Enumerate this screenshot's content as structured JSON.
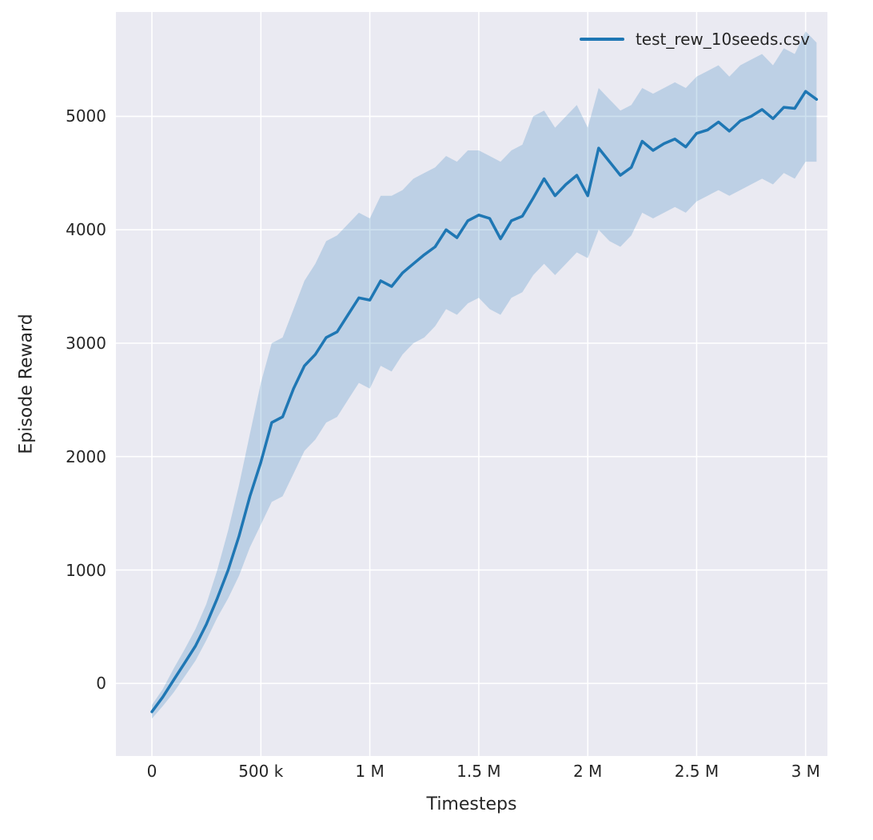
{
  "figure": {
    "background": "#ffffff",
    "plot_background": "#eaeaf2",
    "grid_color": "#ffffff",
    "text_color": "#262626"
  },
  "chart_data": {
    "type": "line",
    "title": "",
    "xlabel": "Timesteps",
    "ylabel": "Episode Reward",
    "grid": true,
    "legend": {
      "position": "upper right",
      "entries": [
        {
          "label": "test_rew_10seeds.csv",
          "color": "#1f77b4"
        }
      ]
    },
    "line_color": "#1f77b4",
    "line_width": 3.5,
    "band_color": "#1f77b4",
    "band_opacity": 0.22,
    "xlim": [
      -165000,
      3100000
    ],
    "ylim": [
      -640,
      5920
    ],
    "xticks": [
      0,
      500000,
      1000000,
      1500000,
      2000000,
      2500000,
      3000000
    ],
    "xtick_labels": [
      "0",
      "500 k",
      "1 M",
      "1.5 M",
      "2 M",
      "2.5 M",
      "3 M"
    ],
    "yticks": [
      0,
      1000,
      2000,
      3000,
      4000,
      5000
    ],
    "ytick_labels": [
      "0",
      "1000",
      "2000",
      "3000",
      "4000",
      "5000"
    ],
    "series": [
      {
        "name": "test_rew_10seeds.csv",
        "x": [
          0,
          50000,
          100000,
          150000,
          200000,
          250000,
          300000,
          350000,
          400000,
          450000,
          500000,
          550000,
          600000,
          650000,
          700000,
          750000,
          800000,
          850000,
          900000,
          950000,
          1000000,
          1050000,
          1100000,
          1150000,
          1200000,
          1250000,
          1300000,
          1350000,
          1400000,
          1450000,
          1500000,
          1550000,
          1600000,
          1650000,
          1700000,
          1750000,
          1800000,
          1850000,
          1900000,
          1950000,
          2000000,
          2050000,
          2100000,
          2150000,
          2200000,
          2250000,
          2300000,
          2350000,
          2400000,
          2450000,
          2500000,
          2550000,
          2600000,
          2650000,
          2700000,
          2750000,
          2800000,
          2850000,
          2900000,
          2950000,
          3000000,
          3050000
        ],
        "mean": [
          -250,
          -120,
          30,
          180,
          330,
          520,
          750,
          1000,
          1300,
          1650,
          1950,
          2300,
          2350,
          2600,
          2800,
          2900,
          3050,
          3100,
          3250,
          3400,
          3380,
          3550,
          3500,
          3620,
          3700,
          3780,
          3850,
          4000,
          3930,
          4080,
          4130,
          4100,
          3920,
          4080,
          4120,
          4280,
          4450,
          4300,
          4400,
          4480,
          4300,
          4720,
          4600,
          4480,
          4550,
          4780,
          4700,
          4760,
          4800,
          4730,
          4850,
          4880,
          4950,
          4870,
          4960,
          5000,
          5060,
          4980,
          5080,
          5070,
          5220,
          5150
        ],
        "lower": [
          -310,
          -200,
          -80,
          60,
          200,
          380,
          580,
          750,
          950,
          1200,
          1400,
          1600,
          1650,
          1850,
          2050,
          2150,
          2300,
          2350,
          2500,
          2650,
          2600,
          2800,
          2750,
          2900,
          3000,
          3050,
          3150,
          3300,
          3250,
          3350,
          3400,
          3300,
          3250,
          3400,
          3450,
          3600,
          3700,
          3600,
          3700,
          3800,
          3750,
          4000,
          3900,
          3850,
          3950,
          4150,
          4100,
          4150,
          4200,
          4150,
          4250,
          4300,
          4350,
          4300,
          4350,
          4400,
          4450,
          4400,
          4500,
          4450,
          4600,
          4600
        ],
        "upper": [
          -190,
          -50,
          130,
          300,
          480,
          700,
          1000,
          1350,
          1750,
          2200,
          2650,
          3000,
          3050,
          3300,
          3550,
          3700,
          3900,
          3950,
          4050,
          4150,
          4100,
          4300,
          4300,
          4350,
          4450,
          4500,
          4550,
          4650,
          4600,
          4700,
          4700,
          4650,
          4600,
          4700,
          4750,
          5000,
          5050,
          4900,
          5000,
          5100,
          4900,
          5250,
          5150,
          5050,
          5100,
          5250,
          5200,
          5250,
          5300,
          5250,
          5350,
          5400,
          5450,
          5350,
          5450,
          5500,
          5550,
          5450,
          5600,
          5550,
          5750,
          5650
        ]
      }
    ]
  }
}
